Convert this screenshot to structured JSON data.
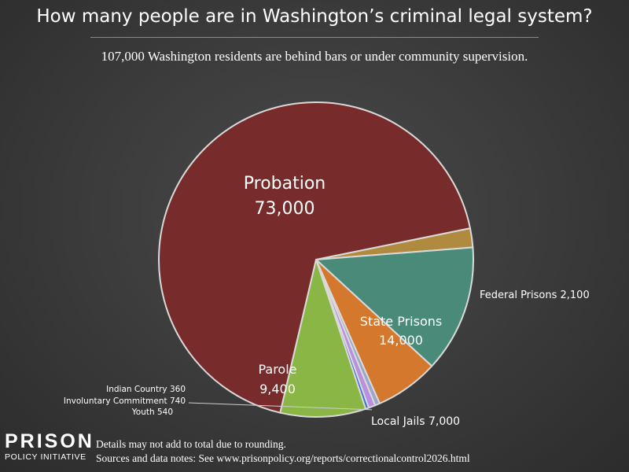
{
  "header": {
    "title": "How many people are in Washington’s criminal legal system?",
    "subtitle": "107,000 Washington residents are behind bars or under community supervision."
  },
  "chart_data": {
    "type": "pie",
    "title": "How many people are in Washington’s criminal legal system?",
    "subtitle": "107,000 Washington residents are behind bars or under community supervision.",
    "total": 107000,
    "slices": [
      {
        "name": "Federal Prisons",
        "value": 2100,
        "value_label": "2,100",
        "color": "#b08a3e"
      },
      {
        "name": "State Prisons",
        "value": 14000,
        "value_label": "14,000",
        "color": "#4a8a78"
      },
      {
        "name": "Local Jails",
        "value": 7000,
        "value_label": "7,000",
        "color": "#d4782e"
      },
      {
        "name": "Youth",
        "value": 540,
        "value_label": "540",
        "color": "#9aa7c8"
      },
      {
        "name": "Involuntary Commitment",
        "value": 740,
        "value_label": "740",
        "color": "#b98fe0"
      },
      {
        "name": "Indian Country",
        "value": 360,
        "value_label": "360",
        "color": "#3e6fd8"
      },
      {
        "name": "Parole",
        "value": 9400,
        "value_label": "9,400",
        "color": "#8ab646"
      },
      {
        "name": "Probation",
        "value": 73000,
        "value_label": "73,000",
        "color": "#772b2a"
      }
    ],
    "slice_border_color": "#d9d9d9"
  },
  "footer": {
    "logo_line1": "PRISON",
    "logo_line2": "POLICY INITIATIVE",
    "note1": "Details may not add to total due to rounding.",
    "note2": "Sources and data notes: See www.prisonpolicy.org/reports/correctionalcontrol2026.html"
  }
}
